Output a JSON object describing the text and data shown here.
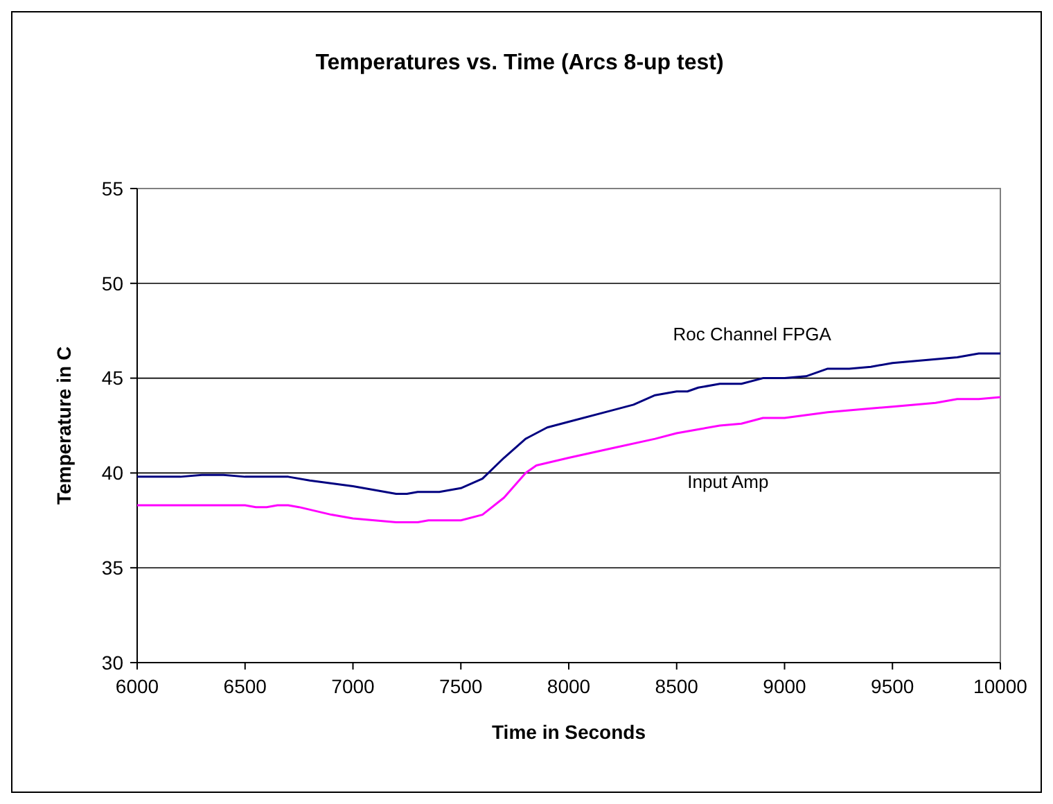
{
  "chart_data": {
    "type": "line",
    "title": "Temperatures vs. Time (Arcs 8-up test)",
    "xlabel": "Time in Seconds",
    "ylabel": "Temperature in C",
    "xlim": [
      6000,
      10000
    ],
    "xticks": [
      6000,
      6500,
      7000,
      7500,
      8000,
      8500,
      9000,
      9500,
      10000
    ],
    "ylim": [
      30,
      55
    ],
    "yticks": [
      30,
      35,
      40,
      45,
      50,
      55
    ],
    "grid": "y",
    "legend": false,
    "marker": "none",
    "line_style": "solid",
    "series": [
      {
        "name": "Roc Channel FPGA",
        "color": "#000080",
        "x": [
          6000,
          6200,
          6300,
          6400,
          6500,
          6700,
          6800,
          7000,
          7100,
          7200,
          7250,
          7300,
          7400,
          7500,
          7600,
          7700,
          7800,
          7900,
          8000,
          8200,
          8300,
          8400,
          8500,
          8550,
          8600,
          8700,
          8800,
          8900,
          9000,
          9100,
          9200,
          9300,
          9400,
          9500,
          9600,
          9700,
          9800,
          9900,
          10000
        ],
        "values": [
          39.8,
          39.8,
          39.9,
          39.9,
          39.8,
          39.8,
          39.6,
          39.3,
          39.1,
          38.9,
          38.9,
          39.0,
          39.0,
          39.2,
          39.7,
          40.8,
          41.8,
          42.4,
          42.7,
          43.3,
          43.6,
          44.1,
          44.3,
          44.3,
          44.5,
          44.7,
          44.7,
          45.0,
          45.0,
          45.1,
          45.5,
          45.5,
          45.6,
          45.8,
          45.9,
          46.0,
          46.1,
          46.3,
          46.3
        ]
      },
      {
        "name": "Input Amp",
        "color": "#ff00ff",
        "x": [
          6000,
          6500,
          6550,
          6600,
          6650,
          6700,
          6750,
          6900,
          7000,
          7200,
          7300,
          7350,
          7500,
          7600,
          7700,
          7800,
          7850,
          8000,
          8200,
          8400,
          8500,
          8600,
          8700,
          8800,
          8900,
          9000,
          9200,
          9300,
          9500,
          9700,
          9800,
          9900,
          10000
        ],
        "values": [
          38.3,
          38.3,
          38.2,
          38.2,
          38.3,
          38.3,
          38.2,
          37.8,
          37.6,
          37.4,
          37.4,
          37.5,
          37.5,
          37.8,
          38.7,
          40.0,
          40.4,
          40.8,
          41.3,
          41.8,
          42.1,
          42.3,
          42.5,
          42.6,
          42.9,
          42.9,
          43.2,
          43.3,
          43.5,
          43.7,
          43.9,
          43.9,
          44.0
        ]
      }
    ]
  }
}
